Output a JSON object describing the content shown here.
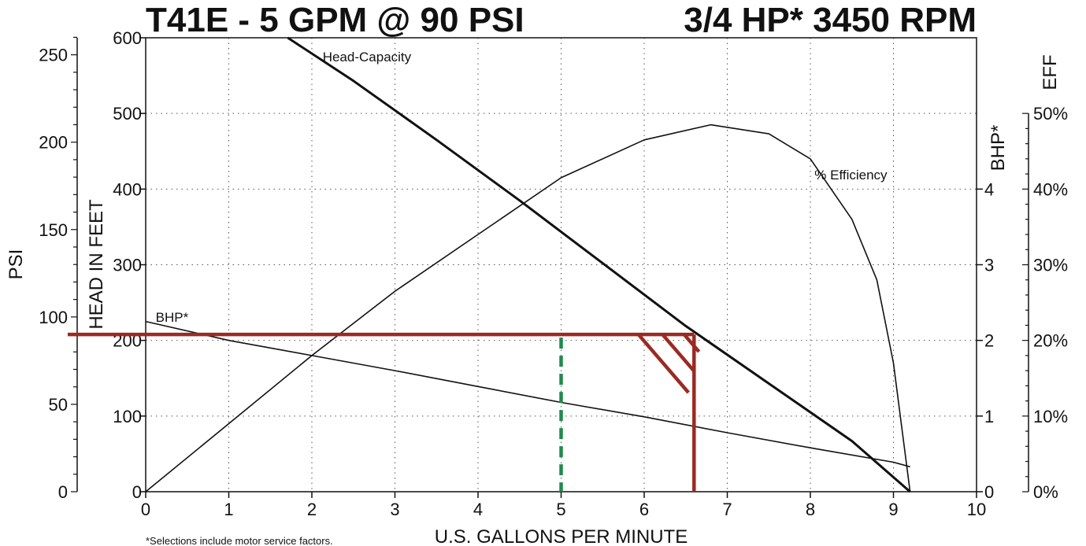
{
  "title_left": "T41E - 5 GPM @ 90 PSI",
  "title_right": "3/4 HP* 3450 RPM",
  "footnote": "*Selections include motor service factors.",
  "colors": {
    "curve": "#111111",
    "grid": "#555555",
    "selection": "#9b2a22",
    "target": "#1f8a4c"
  },
  "chart_data": {
    "type": "line",
    "title": "T41E - 5 GPM @ 90 PSI   3/4 HP* 3450 RPM",
    "xlabel": "U.S. GALLONS PER MINUTE",
    "xlim": [
      0,
      10
    ],
    "x_ticks": [
      "0",
      "1",
      "2",
      "3",
      "4",
      "5",
      "6",
      "7",
      "8",
      "9",
      "10"
    ],
    "grid": true,
    "axes": {
      "head": {
        "label": "HEAD IN FEET",
        "lim": [
          0,
          600
        ],
        "ticks": [
          "0",
          "100",
          "200",
          "300",
          "400",
          "500",
          "600"
        ]
      },
      "psi": {
        "label": "PSI",
        "lim": [
          0,
          260
        ],
        "ticks": [
          "0",
          "50",
          "100",
          "150",
          "200",
          "250"
        ]
      },
      "bhp": {
        "label": "BHP*",
        "lim": [
          0,
          6
        ],
        "ticks": [
          "0",
          "1",
          "2",
          "3",
          "4"
        ]
      },
      "eff": {
        "label": "EFF",
        "lim": [
          0,
          60
        ],
        "ticks": [
          "0%",
          "10%",
          "20%",
          "30%",
          "40%",
          "50%"
        ]
      }
    },
    "series": [
      {
        "name": "Head-Capacity",
        "axis": "head",
        "x": [
          1.71,
          2.5,
          3.5,
          4.5,
          5.5,
          6.5,
          7.5,
          8.5,
          9.2
        ],
        "y": [
          600,
          543,
          465,
          385,
          302,
          219,
          143,
          67,
          0
        ]
      },
      {
        "name": "% Efficiency",
        "axis": "eff",
        "x": [
          0,
          1,
          2,
          3,
          4,
          5,
          6,
          6.8,
          7.5,
          8,
          8.5,
          8.8,
          9.0,
          9.2
        ],
        "y": [
          0,
          9,
          18,
          26.5,
          34,
          41.5,
          46.5,
          48.5,
          47.3,
          44,
          36,
          28,
          17,
          0
        ]
      },
      {
        "name": "BHP*",
        "axis": "bhp",
        "x": [
          0,
          1,
          2,
          3,
          4,
          5,
          6,
          7,
          8,
          9,
          9.2
        ],
        "y": [
          2.25,
          2.0,
          1.8,
          1.6,
          1.39,
          1.18,
          0.99,
          0.78,
          0.58,
          0.39,
          0.33
        ]
      }
    ],
    "selection": {
      "psi": 90,
      "gpm_target": 5,
      "gpm_max": 6.6,
      "head_ft": 208
    }
  }
}
